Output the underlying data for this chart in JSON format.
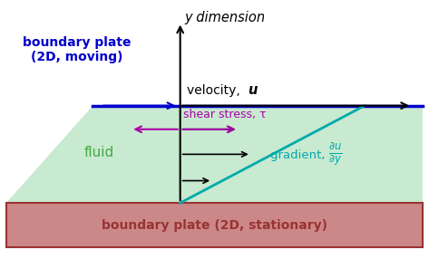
{
  "bg_color": "#ffffff",
  "fluid_fill_color": "#c8ead0",
  "top_plate_color": "#0000cc",
  "bottom_plate_color": "#993333",
  "bottom_plate_fill": "#cc8888",
  "gradient_line_color": "#00aaaa",
  "axis_color": "#000000",
  "shear_arrow_color": "#aa00aa",
  "gradient_arrows_color": "#000000",
  "fluid_label_color": "#44aa44",
  "title_y_dim": "y dimension",
  "label_shear": "shear stress, τ",
  "label_gradient_text": "gradient, ",
  "label_fluid": "fluid",
  "label_top_plate": "boundary plate\n(2D, moving)",
  "label_bottom_plate": "boundary plate (2D, stationary)",
  "figsize": [
    4.73,
    3.07
  ],
  "dpi": 100
}
